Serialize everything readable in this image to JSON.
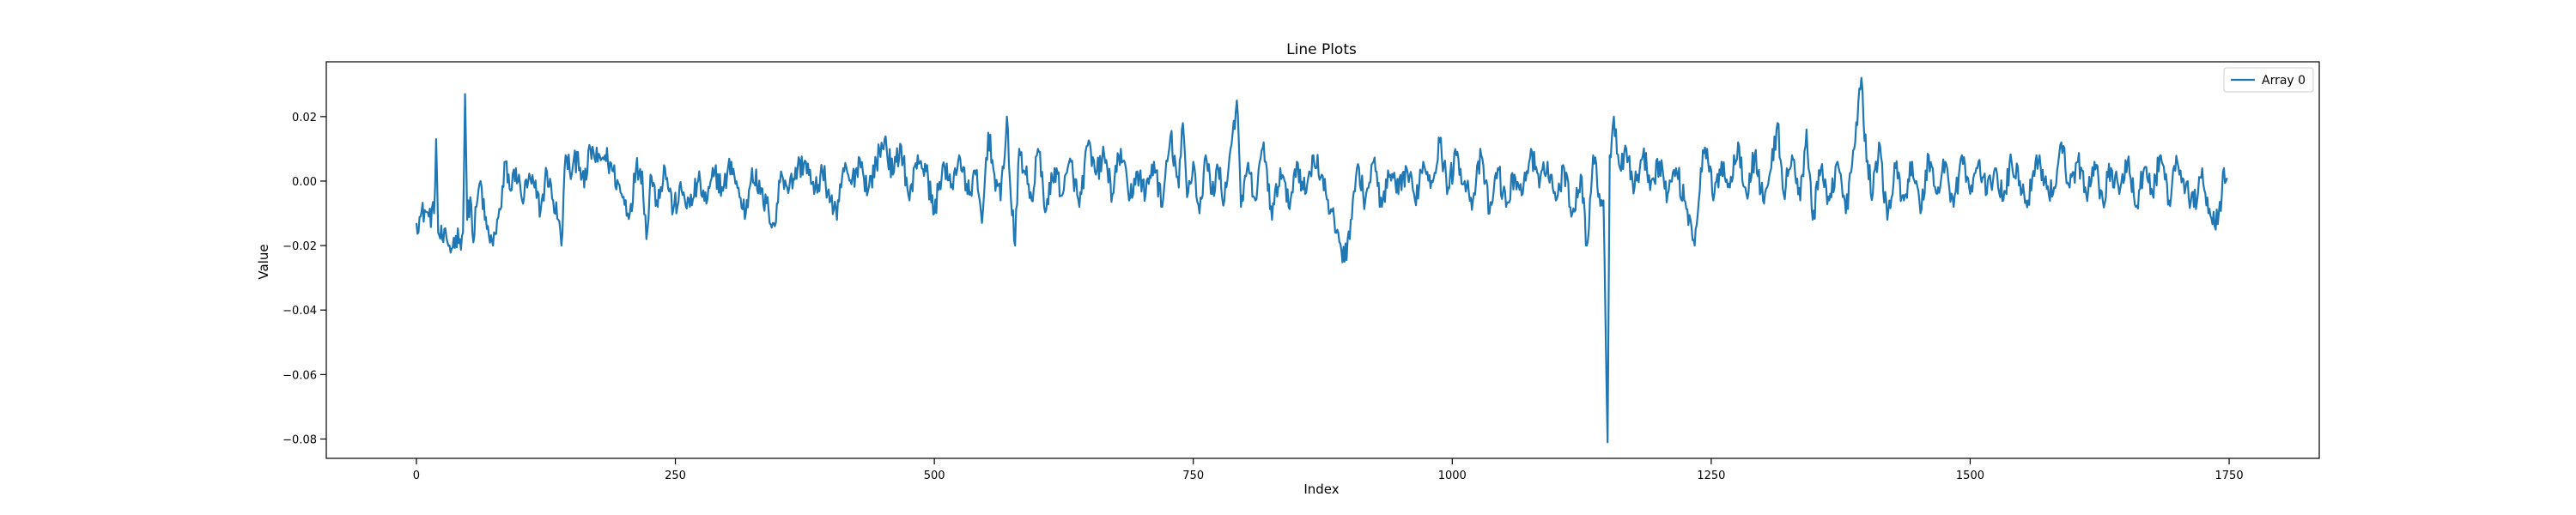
{
  "chart_data": {
    "type": "line",
    "title": "Line Plots",
    "xlabel": "Index",
    "ylabel": "Value",
    "xlim": [
      -87,
      1837
    ],
    "ylim": [
      -0.086,
      0.037
    ],
    "xticks": [
      0,
      250,
      500,
      750,
      1000,
      1250,
      1500,
      1750
    ],
    "xtick_labels": [
      "0",
      "250",
      "500",
      "750",
      "1000",
      "1250",
      "1500",
      "1750"
    ],
    "yticks": [
      -0.08,
      -0.06,
      -0.04,
      -0.02,
      0.0,
      0.02
    ],
    "ytick_labels": [
      "−0.08",
      "−0.06",
      "−0.04",
      "−0.02",
      "0.00",
      "0.02"
    ],
    "grid": false,
    "legend_position": "top-right",
    "series_count": 1749,
    "series": [
      {
        "name": "Array 0",
        "color": "#1f77b4",
        "anchors": [
          [
            0,
            -0.013
          ],
          [
            4,
            -0.011
          ],
          [
            8,
            -0.009
          ],
          [
            12,
            -0.011
          ],
          [
            17,
            -0.01
          ],
          [
            19,
            0.013
          ],
          [
            21,
            -0.016
          ],
          [
            25,
            -0.018
          ],
          [
            30,
            -0.019
          ],
          [
            34,
            -0.021
          ],
          [
            38,
            -0.017
          ],
          [
            42,
            -0.018
          ],
          [
            45,
            -0.016
          ],
          [
            47,
            0.027
          ],
          [
            49,
            -0.012
          ],
          [
            52,
            -0.005
          ],
          [
            55,
            -0.019
          ],
          [
            58,
            -0.008
          ],
          [
            62,
            0.0
          ],
          [
            66,
            -0.012
          ],
          [
            70,
            -0.017
          ],
          [
            74,
            -0.02
          ],
          [
            78,
            -0.012
          ],
          [
            82,
            -0.008
          ],
          [
            86,
            0.006
          ],
          [
            91,
            -0.003
          ],
          [
            96,
            0.004
          ],
          [
            102,
            -0.006
          ],
          [
            108,
            0.0
          ],
          [
            114,
            -0.002
          ],
          [
            120,
            -0.009
          ],
          [
            126,
            0.003
          ],
          [
            132,
            -0.006
          ],
          [
            137,
            -0.012
          ],
          [
            140,
            -0.02
          ],
          [
            144,
            0.008
          ],
          [
            150,
            0.002
          ],
          [
            156,
            0.009
          ],
          [
            162,
            -0.002
          ],
          [
            168,
            0.01
          ],
          [
            175,
            0.006
          ],
          [
            182,
            0.008
          ],
          [
            190,
            0.003
          ],
          [
            198,
            -0.004
          ],
          [
            206,
            -0.01
          ],
          [
            212,
            0.004
          ],
          [
            218,
            0.003
          ],
          [
            222,
            -0.018
          ],
          [
            226,
            0.002
          ],
          [
            232,
            -0.006
          ],
          [
            240,
            0.004
          ],
          [
            248,
            -0.009
          ],
          [
            256,
            -0.003
          ],
          [
            264,
            -0.008
          ],
          [
            272,
            0.0
          ],
          [
            280,
            -0.007
          ],
          [
            288,
            0.003
          ],
          [
            296,
            -0.003
          ],
          [
            304,
            0.006
          ],
          [
            312,
            -0.005
          ],
          [
            318,
            -0.01
          ],
          [
            324,
            0.004
          ],
          [
            332,
            -0.004
          ],
          [
            340,
            -0.009
          ],
          [
            346,
            -0.014
          ],
          [
            352,
            0.003
          ],
          [
            360,
            -0.002
          ],
          [
            368,
            0.004
          ],
          [
            376,
            0.006
          ],
          [
            384,
            -0.004
          ],
          [
            392,
            0.003
          ],
          [
            400,
            -0.006
          ],
          [
            406,
            -0.012
          ],
          [
            412,
            0.004
          ],
          [
            420,
            -0.001
          ],
          [
            428,
            0.007
          ],
          [
            436,
            -0.003
          ],
          [
            444,
            0.006
          ],
          [
            452,
            0.013
          ],
          [
            460,
            0.002
          ],
          [
            468,
            0.011
          ],
          [
            476,
            -0.006
          ],
          [
            484,
            0.008
          ],
          [
            492,
            0.003
          ],
          [
            500,
            -0.01
          ],
          [
            508,
            0.005
          ],
          [
            516,
            -0.002
          ],
          [
            524,
            0.008
          ],
          [
            532,
            -0.004
          ],
          [
            540,
            0.002
          ],
          [
            546,
            -0.013
          ],
          [
            552,
            0.015
          ],
          [
            558,
            0.002
          ],
          [
            564,
            -0.006
          ],
          [
            570,
            0.02
          ],
          [
            574,
            -0.006
          ],
          [
            578,
            -0.02
          ],
          [
            582,
            0.01
          ],
          [
            588,
            0.002
          ],
          [
            594,
            -0.006
          ],
          [
            600,
            0.01
          ],
          [
            608,
            -0.009
          ],
          [
            616,
            0.004
          ],
          [
            624,
            -0.004
          ],
          [
            632,
            0.006
          ],
          [
            640,
            -0.008
          ],
          [
            648,
            0.011
          ],
          [
            656,
            0.002
          ],
          [
            664,
            0.008
          ],
          [
            672,
            -0.004
          ],
          [
            680,
            0.01
          ],
          [
            688,
            -0.006
          ],
          [
            696,
            0.003
          ],
          [
            704,
            -0.004
          ],
          [
            712,
            0.006
          ],
          [
            720,
            -0.008
          ],
          [
            728,
            0.014
          ],
          [
            736,
            -0.002
          ],
          [
            740,
            0.018
          ],
          [
            744,
            -0.005
          ],
          [
            750,
            0.006
          ],
          [
            756,
            -0.01
          ],
          [
            762,
            0.008
          ],
          [
            768,
            -0.004
          ],
          [
            774,
            0.004
          ],
          [
            780,
            -0.006
          ],
          [
            786,
            0.01
          ],
          [
            792,
            0.025
          ],
          [
            796,
            -0.008
          ],
          [
            802,
            0.004
          ],
          [
            810,
            -0.006
          ],
          [
            818,
            0.012
          ],
          [
            826,
            -0.012
          ],
          [
            834,
            0.004
          ],
          [
            842,
            -0.008
          ],
          [
            850,
            0.006
          ],
          [
            858,
            -0.004
          ],
          [
            866,
            0.008
          ],
          [
            874,
            0.002
          ],
          [
            882,
            -0.01
          ],
          [
            890,
            -0.016
          ],
          [
            896,
            -0.025
          ],
          [
            902,
            -0.012
          ],
          [
            908,
            0.004
          ],
          [
            916,
            -0.006
          ],
          [
            924,
            0.006
          ],
          [
            932,
            -0.008
          ],
          [
            940,
            0.002
          ],
          [
            948,
            -0.004
          ],
          [
            956,
            0.004
          ],
          [
            964,
            -0.006
          ],
          [
            972,
            0.006
          ],
          [
            980,
            0.0
          ],
          [
            988,
            0.012
          ],
          [
            996,
            -0.002
          ],
          [
            1004,
            0.008
          ],
          [
            1012,
            0.0
          ],
          [
            1020,
            -0.006
          ],
          [
            1028,
            0.008
          ],
          [
            1036,
            -0.01
          ],
          [
            1044,
            0.004
          ],
          [
            1052,
            -0.008
          ],
          [
            1060,
            0.002
          ],
          [
            1068,
            -0.004
          ],
          [
            1076,
            0.01
          ],
          [
            1084,
            -0.002
          ],
          [
            1092,
            0.006
          ],
          [
            1100,
            -0.006
          ],
          [
            1108,
            0.004
          ],
          [
            1116,
            -0.01
          ],
          [
            1124,
            0.002
          ],
          [
            1130,
            -0.02
          ],
          [
            1136,
            0.008
          ],
          [
            1142,
            -0.004
          ],
          [
            1146,
            -0.006
          ],
          [
            1150,
            -0.081
          ],
          [
            1152,
            0.008
          ],
          [
            1156,
            0.02
          ],
          [
            1162,
            0.004
          ],
          [
            1168,
            0.01
          ],
          [
            1176,
            -0.002
          ],
          [
            1184,
            0.008
          ],
          [
            1192,
            0.0
          ],
          [
            1200,
            0.006
          ],
          [
            1208,
            -0.004
          ],
          [
            1216,
            0.004
          ],
          [
            1224,
            -0.006
          ],
          [
            1230,
            -0.012
          ],
          [
            1234,
            -0.02
          ],
          [
            1240,
            0.004
          ],
          [
            1246,
            0.01
          ],
          [
            1252,
            -0.006
          ],
          [
            1260,
            0.006
          ],
          [
            1268,
            -0.002
          ],
          [
            1276,
            0.012
          ],
          [
            1284,
            -0.004
          ],
          [
            1292,
            0.008
          ],
          [
            1300,
            -0.006
          ],
          [
            1308,
            0.004
          ],
          [
            1314,
            0.018
          ],
          [
            1320,
            -0.004
          ],
          [
            1328,
            0.008
          ],
          [
            1336,
            -0.006
          ],
          [
            1342,
            0.016
          ],
          [
            1348,
            -0.012
          ],
          [
            1356,
            0.004
          ],
          [
            1364,
            -0.006
          ],
          [
            1372,
            0.006
          ],
          [
            1380,
            -0.01
          ],
          [
            1388,
            0.01
          ],
          [
            1395,
            0.032
          ],
          [
            1400,
            0.006
          ],
          [
            1406,
            -0.004
          ],
          [
            1412,
            0.012
          ],
          [
            1420,
            -0.012
          ],
          [
            1428,
            0.004
          ],
          [
            1436,
            -0.006
          ],
          [
            1444,
            0.006
          ],
          [
            1452,
            -0.01
          ],
          [
            1460,
            0.008
          ],
          [
            1468,
            -0.004
          ],
          [
            1476,
            0.006
          ],
          [
            1484,
            -0.008
          ],
          [
            1492,
            0.008
          ],
          [
            1500,
            -0.004
          ],
          [
            1508,
            0.006
          ],
          [
            1516,
            -0.004
          ],
          [
            1524,
            0.004
          ],
          [
            1532,
            -0.006
          ],
          [
            1540,
            0.006
          ],
          [
            1548,
            0.0
          ],
          [
            1556,
            -0.006
          ],
          [
            1564,
            0.008
          ],
          [
            1572,
            0.0
          ],
          [
            1580,
            -0.004
          ],
          [
            1588,
            0.012
          ],
          [
            1596,
            -0.002
          ],
          [
            1604,
            0.006
          ],
          [
            1612,
            -0.004
          ],
          [
            1620,
            0.006
          ],
          [
            1628,
            -0.006
          ],
          [
            1636,
            0.004
          ],
          [
            1644,
            -0.004
          ],
          [
            1652,
            0.006
          ],
          [
            1660,
            -0.008
          ],
          [
            1668,
            0.004
          ],
          [
            1676,
            -0.004
          ],
          [
            1684,
            0.008
          ],
          [
            1692,
            -0.006
          ],
          [
            1700,
            0.006
          ],
          [
            1708,
            -0.002
          ],
          [
            1716,
            -0.008
          ],
          [
            1724,
            0.004
          ],
          [
            1730,
            -0.01
          ],
          [
            1736,
            -0.014
          ],
          [
            1740,
            -0.01
          ],
          [
            1743,
            -0.004
          ],
          [
            1745,
            0.004
          ],
          [
            1747,
            0.0
          ],
          [
            1748,
            0.001
          ]
        ]
      }
    ]
  }
}
